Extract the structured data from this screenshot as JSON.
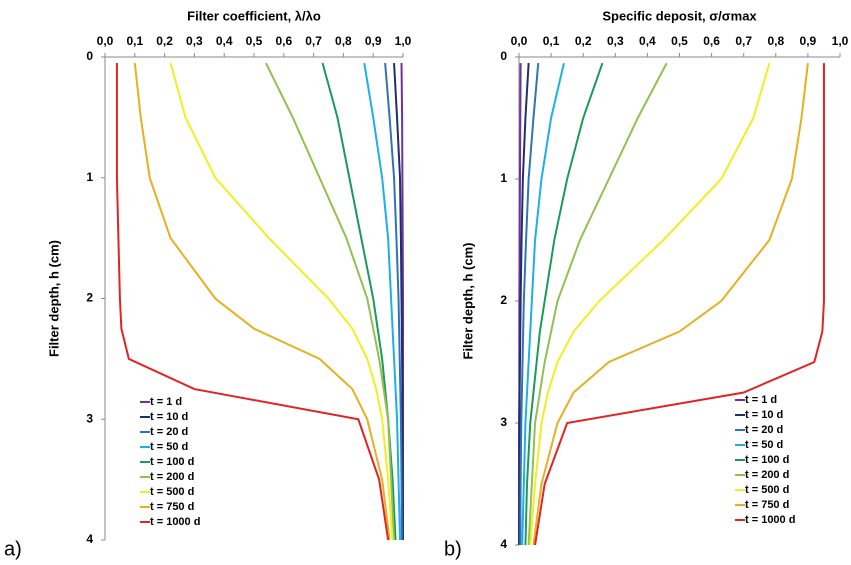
{
  "chart_data": [
    {
      "type": "line",
      "title": "Filter coefficient, λ/λo",
      "y_label": "Filter depth, h (cm)",
      "panel_label": "a)",
      "xlim": [
        0,
        1
      ],
      "xticks": [
        {
          "value": 0,
          "label": "0,0"
        },
        {
          "value": 0.1,
          "label": "0,1"
        },
        {
          "value": 0.2,
          "label": "0,2"
        },
        {
          "value": 0.3,
          "label": "0,3"
        },
        {
          "value": 0.4,
          "label": "0,4"
        },
        {
          "value": 0.5,
          "label": "0,5"
        },
        {
          "value": 0.6,
          "label": "0,6"
        },
        {
          "value": 0.7,
          "label": "0,7"
        },
        {
          "value": 0.8,
          "label": "0,8"
        },
        {
          "value": 0.9,
          "label": "0,9"
        },
        {
          "value": 1,
          "label": "1,0"
        }
      ],
      "ylim": [
        0,
        4
      ],
      "yticks": [
        0,
        1,
        2,
        3,
        4
      ],
      "y_inverted": true,
      "legend": "lower left",
      "series": [
        {
          "name": "t = 1 d",
          "color": "#7030a0",
          "x": [
            0.995,
            0.997,
            0.998,
            0.999,
            1,
            1,
            1,
            1,
            1,
            1,
            1
          ],
          "values": [
            0.05,
            0.5,
            1,
            1.5,
            2,
            2.25,
            2.5,
            2.75,
            3,
            3.5,
            4
          ]
        },
        {
          "name": "t = 10 d",
          "color": "#1f2f6e",
          "x": [
            0.97,
            0.98,
            0.99,
            0.993,
            0.995,
            0.996,
            0.997,
            0.998,
            0.998,
            0.999,
            0.999
          ],
          "values": [
            0.05,
            0.5,
            1,
            1.5,
            2,
            2.25,
            2.5,
            2.75,
            3,
            3.5,
            4
          ]
        },
        {
          "name": "t = 20 d",
          "color": "#2e75b6",
          "x": [
            0.94,
            0.955,
            0.97,
            0.978,
            0.985,
            0.987,
            0.989,
            0.991,
            0.993,
            0.995,
            0.996
          ],
          "values": [
            0.05,
            0.5,
            1,
            1.5,
            2,
            2.25,
            2.5,
            2.75,
            3,
            3.5,
            4
          ]
        },
        {
          "name": "t = 50 d",
          "color": "#1cb0e8",
          "x": [
            0.87,
            0.9,
            0.93,
            0.95,
            0.96,
            0.965,
            0.97,
            0.975,
            0.98,
            0.985,
            0.99
          ],
          "values": [
            0.05,
            0.5,
            1,
            1.5,
            2,
            2.25,
            2.5,
            2.75,
            3,
            3.5,
            4
          ]
        },
        {
          "name": "t = 100 d",
          "color": "#1a9a5c",
          "x": [
            0.73,
            0.78,
            0.82,
            0.86,
            0.9,
            0.915,
            0.93,
            0.94,
            0.95,
            0.965,
            0.975
          ],
          "values": [
            0.05,
            0.5,
            1,
            1.5,
            2,
            2.25,
            2.5,
            2.75,
            3,
            3.5,
            4
          ]
        },
        {
          "name": "t = 200 d",
          "color": "#92c050",
          "x": [
            0.54,
            0.63,
            0.72,
            0.81,
            0.88,
            0.9,
            0.92,
            0.935,
            0.95,
            0.96,
            0.97
          ],
          "values": [
            0.05,
            0.5,
            1,
            1.5,
            2,
            2.25,
            2.5,
            2.75,
            3,
            3.5,
            4
          ]
        },
        {
          "name": "t = 500 d",
          "color": "#f2ee20",
          "x": [
            0.22,
            0.27,
            0.37,
            0.55,
            0.75,
            0.83,
            0.88,
            0.91,
            0.93,
            0.95,
            0.965
          ],
          "values": [
            0.05,
            0.5,
            1,
            1.5,
            2,
            2.25,
            2.5,
            2.75,
            3,
            3.5,
            4
          ]
        },
        {
          "name": "t = 750 d",
          "color": "#e8b020",
          "x": [
            0.1,
            0.12,
            0.15,
            0.22,
            0.37,
            0.5,
            0.72,
            0.83,
            0.88,
            0.93,
            0.955
          ],
          "values": [
            0.05,
            0.5,
            1,
            1.5,
            2,
            2.25,
            2.5,
            2.75,
            3,
            3.5,
            4
          ]
        },
        {
          "name": "t = 1000 d",
          "color": "#e02424",
          "x": [
            0.04,
            0.04,
            0.04,
            0.045,
            0.05,
            0.055,
            0.08,
            0.3,
            0.85,
            0.92,
            0.95
          ],
          "values": [
            0.05,
            0.5,
            1,
            1.5,
            2,
            2.25,
            2.5,
            2.75,
            3,
            3.5,
            4
          ]
        }
      ]
    },
    {
      "type": "line",
      "title": "Specific deposit, σ/σmax",
      "y_label": "Filter depth, h (cm)",
      "panel_label": "b)",
      "xlim": [
        0,
        1
      ],
      "xticks": [
        {
          "value": 0,
          "label": "0,0"
        },
        {
          "value": 0.1,
          "label": "0,1"
        },
        {
          "value": 0.2,
          "label": "0,2"
        },
        {
          "value": 0.3,
          "label": "0,3"
        },
        {
          "value": 0.4,
          "label": "0,4"
        },
        {
          "value": 0.5,
          "label": "0,5"
        },
        {
          "value": 0.6,
          "label": "0,6"
        },
        {
          "value": 0.7,
          "label": "0,7"
        },
        {
          "value": 0.8,
          "label": "0,8"
        },
        {
          "value": 0.9,
          "label": "0,9"
        },
        {
          "value": 1,
          "label": "1,0"
        }
      ],
      "ylim": [
        0,
        4
      ],
      "yticks": [
        0,
        1,
        2,
        3,
        4
      ],
      "y_inverted": true,
      "legend": "lower right",
      "series": [
        {
          "name": "t = 1 d",
          "color": "#7030a0",
          "x": [
            0.005,
            0.004,
            0.003,
            0.002,
            0.001,
            0.001,
            0.001,
            0.001,
            0,
            0,
            0
          ],
          "values": [
            0.05,
            0.5,
            1,
            1.5,
            2,
            2.25,
            2.5,
            2.75,
            3,
            3.5,
            4
          ]
        },
        {
          "name": "t = 10 d",
          "color": "#1f2f6e",
          "x": [
            0.03,
            0.02,
            0.012,
            0.008,
            0.005,
            0.004,
            0.003,
            0.002,
            0.002,
            0.001,
            0.001
          ],
          "values": [
            0.05,
            0.5,
            1,
            1.5,
            2,
            2.25,
            2.5,
            2.75,
            3,
            3.5,
            4
          ]
        },
        {
          "name": "t = 20 d",
          "color": "#2e75b6",
          "x": [
            0.06,
            0.045,
            0.03,
            0.022,
            0.015,
            0.013,
            0.011,
            0.009,
            0.007,
            0.005,
            0.004
          ],
          "values": [
            0.05,
            0.5,
            1,
            1.5,
            2,
            2.25,
            2.5,
            2.75,
            3,
            3.5,
            4
          ]
        },
        {
          "name": "t = 50 d",
          "color": "#1cb0e8",
          "x": [
            0.14,
            0.1,
            0.07,
            0.05,
            0.04,
            0.035,
            0.03,
            0.025,
            0.02,
            0.015,
            0.01
          ],
          "values": [
            0.05,
            0.5,
            1,
            1.5,
            2,
            2.25,
            2.5,
            2.75,
            3,
            3.5,
            4
          ]
        },
        {
          "name": "t = 100 d",
          "color": "#1a9a5c",
          "x": [
            0.26,
            0.2,
            0.15,
            0.11,
            0.08,
            0.065,
            0.055,
            0.045,
            0.035,
            0.025,
            0.02
          ],
          "values": [
            0.05,
            0.5,
            1,
            1.5,
            2,
            2.25,
            2.5,
            2.75,
            3,
            3.5,
            4
          ]
        },
        {
          "name": "t = 200 d",
          "color": "#92c050",
          "x": [
            0.46,
            0.37,
            0.28,
            0.19,
            0.12,
            0.1,
            0.08,
            0.065,
            0.05,
            0.04,
            0.03
          ],
          "values": [
            0.05,
            0.5,
            1,
            1.5,
            2,
            2.25,
            2.5,
            2.75,
            3,
            3.5,
            4
          ]
        },
        {
          "name": "t = 500 d",
          "color": "#f2ee20",
          "x": [
            0.78,
            0.73,
            0.63,
            0.45,
            0.25,
            0.17,
            0.12,
            0.09,
            0.07,
            0.05,
            0.035
          ],
          "values": [
            0.05,
            0.5,
            1,
            1.5,
            2,
            2.25,
            2.5,
            2.75,
            3,
            3.5,
            4
          ]
        },
        {
          "name": "t = 750 d",
          "color": "#e8b020",
          "x": [
            0.9,
            0.88,
            0.85,
            0.78,
            0.63,
            0.5,
            0.28,
            0.17,
            0.12,
            0.07,
            0.045
          ],
          "values": [
            0.05,
            0.5,
            1,
            1.5,
            2,
            2.25,
            2.5,
            2.75,
            3,
            3.5,
            4
          ]
        },
        {
          "name": "t = 1000 d",
          "color": "#e02424",
          "x": [
            0.95,
            0.95,
            0.95,
            0.95,
            0.95,
            0.945,
            0.92,
            0.7,
            0.15,
            0.08,
            0.05
          ],
          "values": [
            0.05,
            0.5,
            1,
            1.5,
            2,
            2.25,
            2.5,
            2.75,
            3,
            3.5,
            4
          ]
        }
      ]
    }
  ]
}
